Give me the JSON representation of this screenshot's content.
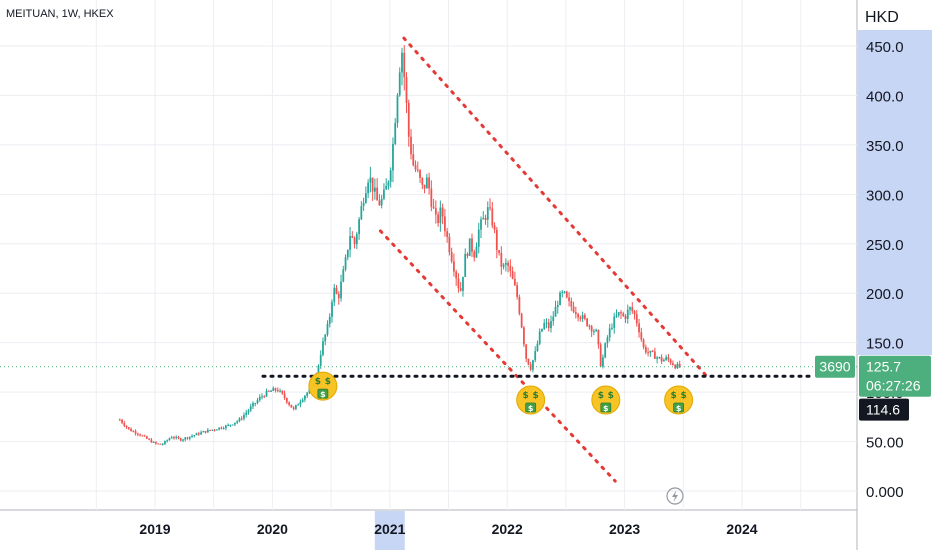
{
  "header": {
    "symbol": "MEITUAN, 1W, HKEX",
    "currency": "HKD"
  },
  "colors": {
    "up": "#26a69a",
    "down": "#ef5350",
    "trend": "#e53935",
    "support": "#131722",
    "price_tag": "#4caf7d",
    "low_tag": "#131722",
    "highlight": "#c8d6f5"
  },
  "icons": {
    "money_face": "money-mouth-face-icon",
    "flash": "lightning-circle-icon"
  },
  "tags": {
    "ticker": "3690",
    "last_price": "125.7",
    "countdown": "06:27:26",
    "low_price": "114.6"
  },
  "chart_data": {
    "type": "candlestick",
    "title": "MEITUAN, 1W, HKEX",
    "y_unit": "HKD",
    "ylim": [
      0,
      450
    ],
    "y_ticks": [
      "0.000",
      "50.00",
      "100.0",
      "150.0",
      "200.0",
      "250.0",
      "300.0",
      "350.0",
      "400.0",
      "450.0"
    ],
    "y_tick_values": [
      0,
      50,
      100,
      150,
      200,
      250,
      300,
      350,
      400,
      450
    ],
    "x_ticks": [
      "2019",
      "2020",
      "2021",
      "2022",
      "2023",
      "2024"
    ],
    "x_tick_values": [
      2019,
      2020,
      2021,
      2022,
      2023,
      2024
    ],
    "xlim": [
      2018.0,
      2024.95
    ],
    "highlighted_x": "2021",
    "last_price": 125.7,
    "low_price": 114.6,
    "price_path": [
      [
        2018.7,
        72
      ],
      [
        2018.78,
        62
      ],
      [
        2018.86,
        58
      ],
      [
        2018.94,
        52
      ],
      [
        2019.0,
        48
      ],
      [
        2019.06,
        47
      ],
      [
        2019.14,
        55
      ],
      [
        2019.22,
        52
      ],
      [
        2019.32,
        56
      ],
      [
        2019.42,
        60
      ],
      [
        2019.52,
        63
      ],
      [
        2019.62,
        66
      ],
      [
        2019.72,
        72
      ],
      [
        2019.82,
        85
      ],
      [
        2019.9,
        95
      ],
      [
        2019.96,
        100
      ],
      [
        2020.04,
        103
      ],
      [
        2020.1,
        95
      ],
      [
        2020.18,
        82
      ],
      [
        2020.24,
        92
      ],
      [
        2020.3,
        100
      ],
      [
        2020.36,
        108
      ],
      [
        2020.42,
        145
      ],
      [
        2020.48,
        170
      ],
      [
        2020.52,
        205
      ],
      [
        2020.56,
        195
      ],
      [
        2020.62,
        230
      ],
      [
        2020.66,
        260
      ],
      [
        2020.7,
        250
      ],
      [
        2020.74,
        275
      ],
      [
        2020.78,
        300
      ],
      [
        2020.82,
        320
      ],
      [
        2020.86,
        305
      ],
      [
        2020.9,
        290
      ],
      [
        2020.94,
        295
      ],
      [
        2020.98,
        310
      ],
      [
        2021.02,
        340
      ],
      [
        2021.06,
        400
      ],
      [
        2021.1,
        450
      ],
      [
        2021.13,
        410
      ],
      [
        2021.16,
        360
      ],
      [
        2021.2,
        330
      ],
      [
        2021.24,
        320
      ],
      [
        2021.28,
        305
      ],
      [
        2021.32,
        315
      ],
      [
        2021.36,
        290
      ],
      [
        2021.4,
        270
      ],
      [
        2021.44,
        285
      ],
      [
        2021.48,
        260
      ],
      [
        2021.52,
        240
      ],
      [
        2021.56,
        220
      ],
      [
        2021.6,
        200
      ],
      [
        2021.64,
        235
      ],
      [
        2021.68,
        250
      ],
      [
        2021.72,
        240
      ],
      [
        2021.76,
        265
      ],
      [
        2021.8,
        275
      ],
      [
        2021.84,
        285
      ],
      [
        2021.88,
        270
      ],
      [
        2021.92,
        240
      ],
      [
        2021.96,
        225
      ],
      [
        2022.0,
        230
      ],
      [
        2022.04,
        215
      ],
      [
        2022.08,
        200
      ],
      [
        2022.12,
        170
      ],
      [
        2022.16,
        135
      ],
      [
        2022.2,
        125
      ],
      [
        2022.24,
        140
      ],
      [
        2022.28,
        160
      ],
      [
        2022.32,
        170
      ],
      [
        2022.36,
        165
      ],
      [
        2022.4,
        180
      ],
      [
        2022.44,
        195
      ],
      [
        2022.48,
        200
      ],
      [
        2022.52,
        190
      ],
      [
        2022.56,
        185
      ],
      [
        2022.6,
        180
      ],
      [
        2022.64,
        175
      ],
      [
        2022.68,
        170
      ],
      [
        2022.72,
        165
      ],
      [
        2022.76,
        160
      ],
      [
        2022.8,
        125
      ],
      [
        2022.84,
        150
      ],
      [
        2022.88,
        165
      ],
      [
        2022.92,
        175
      ],
      [
        2022.96,
        180
      ],
      [
        2023.0,
        175
      ],
      [
        2023.04,
        185
      ],
      [
        2023.08,
        180
      ],
      [
        2023.12,
        165
      ],
      [
        2023.16,
        145
      ],
      [
        2023.2,
        140
      ],
      [
        2023.24,
        138
      ],
      [
        2023.28,
        135
      ],
      [
        2023.32,
        132
      ],
      [
        2023.36,
        134
      ],
      [
        2023.4,
        130
      ],
      [
        2023.44,
        126
      ],
      [
        2023.47,
        125.7
      ]
    ],
    "trendlines": [
      {
        "from": [
          2021.12,
          458
        ],
        "to": [
          2023.7,
          116
        ]
      },
      {
        "from": [
          2020.92,
          263
        ],
        "to": [
          2022.92,
          10
        ]
      }
    ],
    "support": {
      "from": [
        2019.92,
        116
      ],
      "to": [
        2024.62,
        116
      ]
    },
    "markers": [
      {
        "x": 2020.43,
        "y": 106
      },
      {
        "x": 2022.2,
        "y": 92
      },
      {
        "x": 2022.84,
        "y": 92
      },
      {
        "x": 2023.46,
        "y": 92
      }
    ]
  }
}
